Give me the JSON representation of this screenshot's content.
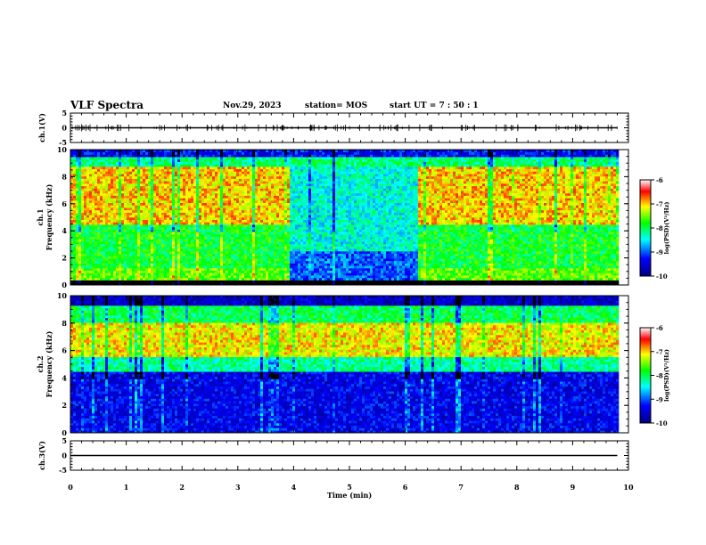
{
  "header": {
    "title": "VLF Spectra",
    "date": "Nov.29, 2023",
    "station": "station= MOS",
    "start_ut": "start  UT  =   7 : 50 : 1"
  },
  "colorbar": {
    "tick_labels": [
      "-6",
      "-7",
      "-8",
      "-9",
      "-10"
    ],
    "label": "log(PSD)(V²/Hz)"
  },
  "chart_data": [
    {
      "type": "line",
      "panel": "ch1-voltage",
      "ylabel": "ch.1(V)",
      "ylim": [
        -5,
        5
      ],
      "yticks": [
        "5",
        "0",
        "-5"
      ],
      "xlim": [
        0,
        10
      ],
      "series": [
        {
          "x": [
            0,
            9.8
          ],
          "y": [
            0,
            0
          ]
        }
      ]
    },
    {
      "type": "heatmap",
      "panel": "ch1-spectrogram",
      "ylabel": "ch.1\nFrequency (kHz)",
      "ylim": [
        0,
        10
      ],
      "yticks": [
        "0",
        "2",
        "4",
        "6",
        "8",
        "10"
      ],
      "xlim": [
        0,
        9.8
      ],
      "zlim": [
        -10,
        -6
      ],
      "colormap": [
        "#000080",
        "#0000ff",
        "#00ffff",
        "#00ff00",
        "#ffff00",
        "#ff0000",
        "#ffffff"
      ],
      "bands": [
        {
          "f0": 0,
          "f1": 0.3,
          "level": -10.5
        },
        {
          "f0": 0.3,
          "f1": 1.2,
          "level": -7.6
        },
        {
          "f0": 1.2,
          "f1": 4.5,
          "level": -7.9
        },
        {
          "f0": 4.5,
          "f1": 8.8,
          "level": -7.0
        },
        {
          "f0": 8.8,
          "f1": 9.4,
          "level": -8.1
        },
        {
          "f0": 9.4,
          "f1": 10,
          "level": -9.3
        }
      ],
      "quiet_interval": {
        "t0": 3.9,
        "t1": 6.2,
        "level": -8.4
      }
    },
    {
      "type": "heatmap",
      "panel": "ch2-spectrogram",
      "ylabel": "ch.2\nFrequency (kHz)",
      "ylim": [
        0,
        10
      ],
      "yticks": [
        "0",
        "2",
        "4",
        "6",
        "8",
        "10"
      ],
      "xlim": [
        0,
        9.8
      ],
      "zlim": [
        -10,
        -6
      ],
      "colormap": [
        "#000080",
        "#0000ff",
        "#00ffff",
        "#00ff00",
        "#ffff00",
        "#ff0000",
        "#ffffff"
      ],
      "bands": [
        {
          "f0": 0,
          "f1": 4.5,
          "level": -9.4
        },
        {
          "f0": 4.5,
          "f1": 5.5,
          "level": -8.2
        },
        {
          "f0": 5.5,
          "f1": 8.0,
          "level": -7.1
        },
        {
          "f0": 8.0,
          "f1": 9.2,
          "level": -8.0
        },
        {
          "f0": 9.2,
          "f1": 10,
          "level": -9.6
        }
      ]
    },
    {
      "type": "line",
      "panel": "ch3-voltage",
      "ylabel": "ch.3(V)",
      "ylim": [
        -5,
        5
      ],
      "yticks": [
        "5",
        "0",
        "-5"
      ],
      "xlim": [
        0,
        10
      ],
      "xlabel": "Time (min)",
      "xticks": [
        "0",
        "1",
        "2",
        "3",
        "4",
        "5",
        "6",
        "7",
        "8",
        "9",
        "10"
      ],
      "series": [
        {
          "x": [
            0,
            9.8
          ],
          "y": [
            0,
            0
          ]
        }
      ]
    }
  ]
}
